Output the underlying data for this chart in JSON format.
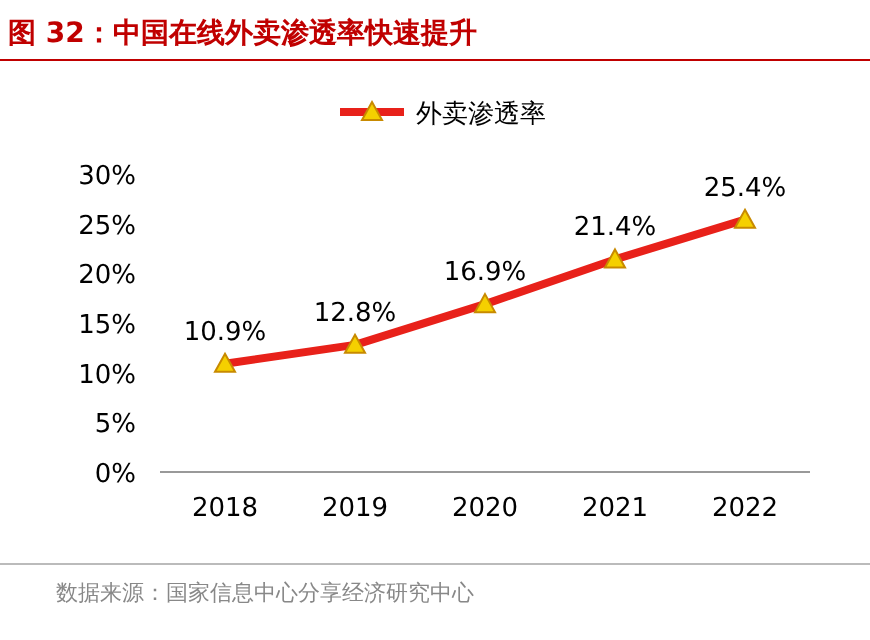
{
  "chart_data": {
    "type": "line",
    "title": "图 32：中国在线外卖渗透率快速提升",
    "annotations": [
      "数据来源：国家信息中心分享经济研究中心"
    ],
    "categories": [
      "2018",
      "2019",
      "2020",
      "2021",
      "2022"
    ],
    "series": [
      {
        "name": "外卖渗透率",
        "color": "#e8211a",
        "values": [
          10.9,
          12.8,
          16.9,
          21.4,
          25.4
        ],
        "value_labels": [
          "10.9%",
          "12.8%",
          "16.9%",
          "21.4%",
          "25.4%"
        ]
      }
    ],
    "ylim": [
      0,
      30
    ],
    "yticks": [
      {
        "value": 0,
        "label": "0%"
      },
      {
        "value": 5,
        "label": "5%"
      },
      {
        "value": 10,
        "label": "10%"
      },
      {
        "value": 15,
        "label": "15%"
      },
      {
        "value": 20,
        "label": "20%"
      },
      {
        "value": 25,
        "label": "25%"
      },
      {
        "value": 30,
        "label": "30%"
      }
    ],
    "legend": "top",
    "marker": "triangle"
  }
}
